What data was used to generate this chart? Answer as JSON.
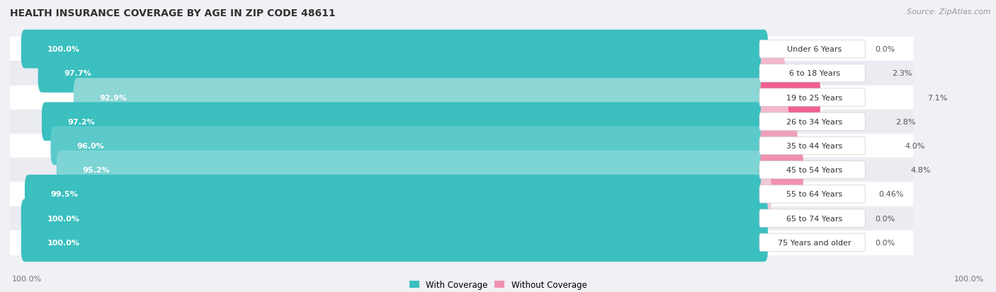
{
  "title": "HEALTH INSURANCE COVERAGE BY AGE IN ZIP CODE 48611",
  "source": "Source: ZipAtlas.com",
  "categories": [
    "Under 6 Years",
    "6 to 18 Years",
    "19 to 25 Years",
    "26 to 34 Years",
    "35 to 44 Years",
    "45 to 54 Years",
    "55 to 64 Years",
    "65 to 74 Years",
    "75 Years and older"
  ],
  "with_coverage": [
    100.0,
    97.7,
    92.9,
    97.2,
    96.0,
    95.2,
    99.5,
    100.0,
    100.0
  ],
  "without_coverage": [
    0.0,
    2.3,
    7.1,
    2.8,
    4.0,
    4.8,
    0.46,
    0.0,
    0.0
  ],
  "with_coverage_labels": [
    "100.0%",
    "97.7%",
    "92.9%",
    "97.2%",
    "96.0%",
    "95.2%",
    "99.5%",
    "100.0%",
    "100.0%"
  ],
  "without_coverage_labels": [
    "0.0%",
    "2.3%",
    "7.1%",
    "2.8%",
    "4.0%",
    "4.8%",
    "0.46%",
    "0.0%",
    "0.0%"
  ],
  "with_colors": [
    "#3BBFBF",
    "#3BBFBF",
    "#8DD6D6",
    "#3BBFBF",
    "#5CCACA",
    "#7DD4D4",
    "#3BBFBF",
    "#3BBFBF",
    "#3BBFBF"
  ],
  "without_colors": [
    "#F4B8CC",
    "#F4B8CC",
    "#EE6090",
    "#F4B8CC",
    "#F0A0BC",
    "#F090B0",
    "#F4C8D8",
    "#F4B8CC",
    "#F4B8CC"
  ],
  "row_bg_odd": "#FFFFFF",
  "row_bg_even": "#F0F0F5",
  "bg_color": "#F0F0F5",
  "title_fontsize": 10,
  "label_fontsize": 8,
  "cat_fontsize": 8,
  "legend_fontsize": 8.5,
  "footer_fontsize": 8
}
